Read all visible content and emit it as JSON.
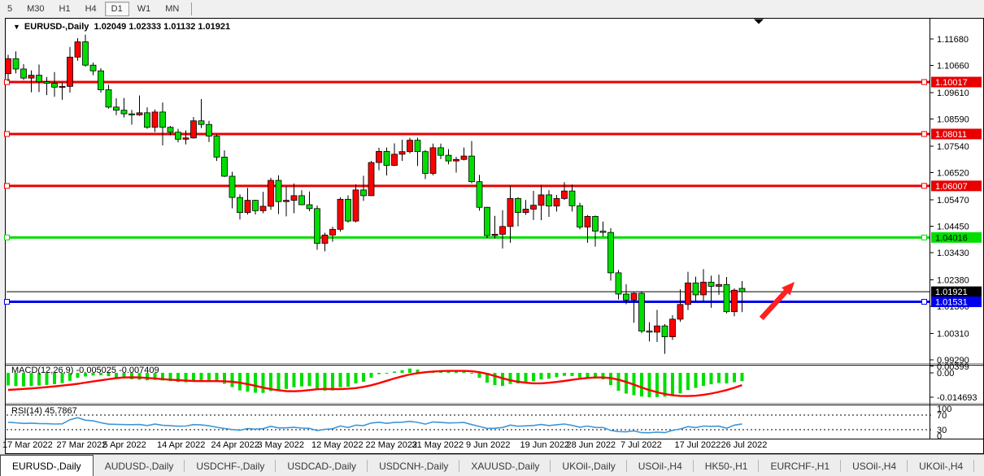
{
  "toolbar": {
    "buttons": [
      {
        "label": "5",
        "active": false
      },
      {
        "label": "M30",
        "active": false
      },
      {
        "label": "H1",
        "active": false
      },
      {
        "label": "H4",
        "active": false
      },
      {
        "label": "D1",
        "active": true
      },
      {
        "label": "W1",
        "active": false
      },
      {
        "label": "MN",
        "active": false
      }
    ]
  },
  "chart": {
    "title": {
      "icon": "▼",
      "symbol": "EURUSD-,Daily",
      "ohlc": "1.02049 1.02333 1.01132 1.01921"
    }
  },
  "chart_data": {
    "type": "candlestick",
    "symbol": "EURUSD-,Daily",
    "last_bar": {
      "open": 1.02049,
      "high": 1.02333,
      "low": 1.01132,
      "close": 1.01921
    },
    "colors": {
      "bull": "#FF0000",
      "bear": "#00DE00",
      "wick": "#000000",
      "rsi_line": "#3E96D8",
      "macd_hist": "#00DE00",
      "macd_signal": "#FF0000",
      "arrow": "#FF2020"
    },
    "price_axis": [
      "1.11680",
      "1.10660",
      "1.09610",
      "1.08590",
      "1.07540",
      "1.06520",
      "1.05470",
      "1.04450",
      "1.03430",
      "1.02380",
      "1.01360",
      "1.00310",
      "0.99290"
    ],
    "levels": [
      {
        "price": 1.10017,
        "label": "1.10017",
        "color": "#E80000",
        "text": "#FFFFFF",
        "width": 3
      },
      {
        "price": 1.08011,
        "label": "1.08011",
        "color": "#E80000",
        "text": "#FFFFFF",
        "width": 3
      },
      {
        "price": 1.06007,
        "label": "1.06007",
        "color": "#E80000",
        "text": "#FFFFFF",
        "width": 3
      },
      {
        "price": 1.04016,
        "label": "1.04016",
        "color": "#00DE00",
        "text": "#000000",
        "width": 3
      },
      {
        "price": 1.01921,
        "label": "1.01921",
        "color": "#000000",
        "text": "#FFFFFF",
        "width": 1
      },
      {
        "price": 1.01531,
        "label": "1.01531",
        "color": "#0000EE",
        "text": "#FFFFFF",
        "width": 3
      }
    ],
    "candles": [
      [
        1.1034,
        1.1107,
        1.1005,
        1.1092
      ],
      [
        1.1092,
        1.112,
        1.1035,
        1.1052
      ],
      [
        1.1052,
        1.1071,
        1.101,
        1.1017
      ],
      [
        1.1017,
        1.1047,
        1.0962,
        1.1028
      ],
      [
        1.1028,
        1.1069,
        1.0963,
        1.1003
      ],
      [
        1.1003,
        1.1021,
        1.0951,
        1.0997
      ],
      [
        1.0997,
        1.104,
        1.0945,
        1.0982
      ],
      [
        1.0982,
        1.1,
        1.0933,
        1.0985
      ],
      [
        1.0985,
        1.1137,
        1.0961,
        1.1098
      ],
      [
        1.1098,
        1.1171,
        1.1084,
        1.1157
      ],
      [
        1.1157,
        1.1185,
        1.1061,
        1.1067
      ],
      [
        1.1067,
        1.1077,
        1.1028,
        1.1045
      ],
      [
        1.1045,
        1.1055,
        1.0961,
        1.0972
      ],
      [
        1.0972,
        1.0991,
        1.0899,
        1.0905
      ],
      [
        1.0905,
        1.0939,
        1.0874,
        1.0893
      ],
      [
        1.0893,
        1.094,
        1.0865,
        1.0879
      ],
      [
        1.0879,
        1.0894,
        1.0837,
        1.0875
      ],
      [
        1.0875,
        1.095,
        1.0871,
        1.0883
      ],
      [
        1.0883,
        1.0904,
        1.0821,
        1.0827
      ],
      [
        1.0827,
        1.0896,
        1.0809,
        1.0886
      ],
      [
        1.0886,
        1.0923,
        1.0757,
        1.0827
      ],
      [
        1.0827,
        1.0832,
        1.0796,
        1.0808
      ],
      [
        1.0808,
        1.0821,
        1.0769,
        1.0781
      ],
      [
        1.0781,
        1.0815,
        1.0761,
        1.0786
      ],
      [
        1.0786,
        1.0867,
        1.0783,
        1.0852
      ],
      [
        1.0852,
        1.0936,
        1.0824,
        1.0838
      ],
      [
        1.0838,
        1.0852,
        1.077,
        1.0793
      ],
      [
        1.0793,
        1.08,
        1.0697,
        1.0712
      ],
      [
        1.0712,
        1.0738,
        1.0635,
        1.0638
      ],
      [
        1.0638,
        1.0655,
        1.0514,
        1.0556
      ],
      [
        1.0556,
        1.0568,
        1.0471,
        1.0498
      ],
      [
        1.0498,
        1.0593,
        1.049,
        1.0545
      ],
      [
        1.0545,
        1.0547,
        1.049,
        1.0505
      ],
      [
        1.0505,
        1.0578,
        1.0495,
        1.0522
      ],
      [
        1.0522,
        1.0632,
        1.0508,
        1.0622
      ],
      [
        1.0622,
        1.0642,
        1.0492,
        1.054
      ],
      [
        1.054,
        1.0599,
        1.0483,
        1.0545
      ],
      [
        1.0545,
        1.061,
        1.0495,
        1.0563
      ],
      [
        1.0563,
        1.0584,
        1.0526,
        1.0528
      ],
      [
        1.0528,
        1.0579,
        1.0503,
        1.0513
      ],
      [
        1.0513,
        1.0525,
        1.0354,
        1.0379
      ],
      [
        1.0379,
        1.042,
        1.0348,
        1.0411
      ],
      [
        1.0411,
        1.0443,
        1.0385,
        1.0433
      ],
      [
        1.0433,
        1.0557,
        1.0424,
        1.0549
      ],
      [
        1.0549,
        1.0564,
        1.0459,
        1.0465
      ],
      [
        1.0465,
        1.0607,
        1.046,
        1.0585
      ],
      [
        1.0585,
        1.064,
        1.0543,
        1.0563
      ],
      [
        1.0563,
        1.0697,
        1.0562,
        1.0691
      ],
      [
        1.0691,
        1.0748,
        1.0661,
        1.0734
      ],
      [
        1.0734,
        1.0749,
        1.0641,
        1.068
      ],
      [
        1.068,
        1.0765,
        1.0677,
        1.0723
      ],
      [
        1.0723,
        1.0779,
        1.0697,
        1.0733
      ],
      [
        1.0733,
        1.0786,
        1.0726,
        1.0777
      ],
      [
        1.0777,
        1.0787,
        1.0678,
        1.0733
      ],
      [
        1.0733,
        1.0739,
        1.0627,
        1.0649
      ],
      [
        1.0649,
        1.0764,
        1.0642,
        1.0748
      ],
      [
        1.0748,
        1.0764,
        1.0704,
        1.0719
      ],
      [
        1.0719,
        1.0743,
        1.0684,
        1.0697
      ],
      [
        1.0697,
        1.0713,
        1.0652,
        1.0703
      ],
      [
        1.0703,
        1.0749,
        1.0699,
        1.0716
      ],
      [
        1.0716,
        1.0774,
        1.0611,
        1.0617
      ],
      [
        1.0617,
        1.0643,
        1.0505,
        1.0518
      ],
      [
        1.0518,
        1.052,
        1.0399,
        1.0409
      ],
      [
        1.0409,
        1.0485,
        1.0397,
        1.0414
      ],
      [
        1.0414,
        1.0507,
        1.0359,
        1.0444
      ],
      [
        1.0444,
        1.0601,
        1.0381,
        1.0552
      ],
      [
        1.0552,
        1.0557,
        1.0444,
        1.0498
      ],
      [
        1.0498,
        1.0546,
        1.0489,
        1.0511
      ],
      [
        1.0511,
        1.0582,
        1.0469,
        1.0526
      ],
      [
        1.0526,
        1.0605,
        1.0468,
        1.0566
      ],
      [
        1.0566,
        1.0584,
        1.0481,
        1.0523
      ],
      [
        1.0523,
        1.0566,
        1.0502,
        1.0552
      ],
      [
        1.0552,
        1.0615,
        1.0547,
        1.0581
      ],
      [
        1.0581,
        1.0606,
        1.0502,
        1.0524
      ],
      [
        1.0524,
        1.0536,
        1.0433,
        1.0442
      ],
      [
        1.0442,
        1.0488,
        1.0381,
        1.0483
      ],
      [
        1.0483,
        1.0486,
        1.0366,
        1.0426
      ],
      [
        1.0426,
        1.0463,
        1.0405,
        1.0421
      ],
      [
        1.0421,
        1.0437,
        1.0235,
        1.0265
      ],
      [
        1.0265,
        1.0276,
        1.0162,
        1.0183
      ],
      [
        1.0183,
        1.0221,
        1.0144,
        1.016
      ],
      [
        1.016,
        1.019,
        1.0072,
        1.0186
      ],
      [
        1.0186,
        1.0193,
        1.0032,
        1.004
      ],
      [
        1.004,
        1.0074,
        1.0,
        1.0036
      ],
      [
        1.0036,
        1.0122,
        0.9998,
        1.006
      ],
      [
        1.006,
        1.0067,
        0.9952,
        1.0018
      ],
      [
        1.0018,
        1.0101,
        1.0006,
        1.0086
      ],
      [
        1.0086,
        1.0201,
        1.0076,
        1.0143
      ],
      [
        1.0143,
        1.0269,
        1.0121,
        1.0226
      ],
      [
        1.0226,
        1.025,
        1.0155,
        1.018
      ],
      [
        1.018,
        1.0279,
        1.0153,
        1.0229
      ],
      [
        1.0229,
        1.0254,
        1.013,
        1.0213
      ],
      [
        1.0213,
        1.0258,
        1.018,
        1.022
      ],
      [
        1.022,
        1.0249,
        1.0108,
        1.0115
      ],
      [
        1.0115,
        1.0205,
        1.0097,
        1.0198
      ],
      [
        1.02049,
        1.02333,
        1.01132,
        1.01921
      ]
    ],
    "date_labels": [
      {
        "index": 0,
        "label": "17 Mar 2022"
      },
      {
        "index": 7,
        "label": "27 Mar 2022"
      },
      {
        "index": 13,
        "label": "5 Apr 2022"
      },
      {
        "index": 20,
        "label": "14 Apr 2022"
      },
      {
        "index": 27,
        "label": "24 Apr 2022"
      },
      {
        "index": 33,
        "label": "3 May 2022"
      },
      {
        "index": 40,
        "label": "12 May 2022"
      },
      {
        "index": 47,
        "label": "22 May 2022"
      },
      {
        "index": 53,
        "label": "31 May 2022"
      },
      {
        "index": 60,
        "label": "9 Jun 2022"
      },
      {
        "index": 67,
        "label": "19 Jun 2022"
      },
      {
        "index": 73,
        "label": "28 Jun 2022"
      },
      {
        "index": 80,
        "label": "7 Jul 2022"
      },
      {
        "index": 87,
        "label": "17 Jul 2022"
      },
      {
        "index": 93,
        "label": "26 Jul 2022"
      }
    ],
    "annotations": [
      {
        "type": "arrow-up-right",
        "from_index": 97.5,
        "from_price": 1.0089,
        "to_index": 101.8,
        "to_price": 1.023,
        "color": "#FF2020"
      }
    ],
    "indicators": {
      "macd": {
        "label": "MACD(12,26,9)",
        "values_label": "-0.005025 -0.007409",
        "current": -0.005025,
        "signal_current": -0.007409,
        "axis_labels": [
          "0.00399",
          "0.00",
          "-0.014693"
        ],
        "hist": [
          -0.0076,
          -0.008,
          -0.0082,
          -0.008,
          -0.0077,
          -0.0073,
          -0.0068,
          -0.0062,
          -0.0048,
          -0.003,
          -0.0022,
          -0.0016,
          -0.0015,
          -0.002,
          -0.0027,
          -0.0034,
          -0.0039,
          -0.0042,
          -0.0045,
          -0.0043,
          -0.0046,
          -0.005,
          -0.0055,
          -0.0057,
          -0.0051,
          -0.0046,
          -0.0046,
          -0.0053,
          -0.0066,
          -0.0086,
          -0.0106,
          -0.0114,
          -0.012,
          -0.0121,
          -0.0109,
          -0.0104,
          -0.0097,
          -0.0087,
          -0.0082,
          -0.008,
          -0.0101,
          -0.0107,
          -0.0106,
          -0.0087,
          -0.0084,
          -0.0064,
          -0.0054,
          -0.0029,
          -0.0008,
          -0.0001,
          0.0008,
          0.0016,
          0.0026,
          0.002,
          0.0006,
          0.0011,
          0.0013,
          0.0011,
          0.0011,
          0.0013,
          -0.0004,
          -0.003,
          -0.0059,
          -0.0074,
          -0.0079,
          -0.0067,
          -0.0064,
          -0.0059,
          -0.0051,
          -0.004,
          -0.0035,
          -0.0027,
          -0.0018,
          -0.0019,
          -0.0029,
          -0.003,
          -0.0035,
          -0.004,
          -0.0074,
          -0.0108,
          -0.0125,
          -0.0135,
          -0.0143,
          -0.0147,
          -0.0146,
          -0.0144,
          -0.0137,
          -0.0124,
          -0.0104,
          -0.0091,
          -0.0079,
          -0.0069,
          -0.0061,
          -0.0064,
          -0.0057,
          -0.005025
        ],
        "signal": [
          -0.0103,
          -0.01,
          -0.0097,
          -0.0094,
          -0.009,
          -0.0086,
          -0.0082,
          -0.0077,
          -0.0072,
          -0.0066,
          -0.0059,
          -0.0052,
          -0.0045,
          -0.0038,
          -0.0032,
          -0.0028,
          -0.0027,
          -0.0028,
          -0.0031,
          -0.0034,
          -0.0038,
          -0.0041,
          -0.0044,
          -0.0047,
          -0.0049,
          -0.005,
          -0.005,
          -0.005,
          -0.0051,
          -0.0054,
          -0.006,
          -0.0068,
          -0.0078,
          -0.0089,
          -0.0098,
          -0.0105,
          -0.011,
          -0.0111,
          -0.0109,
          -0.0104,
          -0.0099,
          -0.0097,
          -0.0098,
          -0.0098,
          -0.0096,
          -0.0092,
          -0.0085,
          -0.0075,
          -0.0062,
          -0.0048,
          -0.0034,
          -0.0021,
          -0.001,
          -0.0002,
          0.0004,
          0.0008,
          0.0011,
          0.0012,
          0.0012,
          0.0012,
          0.001,
          0.0004,
          -0.0006,
          -0.0019,
          -0.0033,
          -0.0045,
          -0.0054,
          -0.006,
          -0.0063,
          -0.0063,
          -0.006,
          -0.0055,
          -0.0049,
          -0.0042,
          -0.0036,
          -0.0031,
          -0.0028,
          -0.0028,
          -0.0032,
          -0.0041,
          -0.0055,
          -0.0071,
          -0.0088,
          -0.0104,
          -0.0117,
          -0.0128,
          -0.0135,
          -0.0139,
          -0.014,
          -0.0138,
          -0.0133,
          -0.0125,
          -0.0115,
          -0.0104,
          -0.009,
          -0.0074
        ]
      },
      "rsi": {
        "label": "RSI(14)",
        "value_label": "45.7867",
        "current": 45.7867,
        "axis_labels": [
          "100",
          "70",
          "30",
          "0"
        ],
        "level_values": [
          100,
          70,
          30,
          0
        ],
        "values": [
          50.5,
          48.9,
          47.2,
          48.1,
          46.8,
          46.4,
          45.6,
          45.9,
          57.4,
          62.8,
          55.9,
          54.2,
          49.0,
          45.2,
          44.6,
          43.9,
          43.7,
          44.2,
          41.3,
          45.3,
          41.9,
          40.9,
          39.5,
          39.9,
          43.9,
          43.1,
          40.6,
          36.6,
          33.4,
          30.4,
          28.5,
          33.2,
          31.5,
          32.8,
          39.3,
          34.8,
          35.2,
          36.5,
          34.5,
          33.7,
          27.6,
          31.1,
          32.6,
          40.3,
          35.9,
          42.5,
          41.3,
          48.2,
          50.4,
          47.3,
          49.8,
          50.4,
          52.9,
          50.1,
          45.3,
          51.3,
          49.7,
          48.5,
          48.9,
          49.7,
          44.0,
          38.8,
          33.5,
          34.0,
          36.0,
          42.7,
          39.5,
          40.5,
          41.6,
          44.3,
          41.4,
          43.5,
          45.5,
          41.7,
          36.9,
          40.1,
          36.3,
          36.0,
          27.9,
          24.9,
          24.2,
          26.6,
          21.9,
          21.8,
          23.3,
          22.1,
          28.0,
          32.0,
          38.5,
          35.8,
          40.0,
          39.1,
          39.7,
          33.9,
          42.5,
          45.79
        ]
      }
    }
  },
  "tabbar": {
    "tabs": [
      {
        "label": "EURUSD-,Daily",
        "active": true
      },
      {
        "label": "AUDUSD-,Daily",
        "active": false
      },
      {
        "label": "USDCHF-,Daily",
        "active": false
      },
      {
        "label": "USDCAD-,Daily",
        "active": false
      },
      {
        "label": "USDCNH-,Daily",
        "active": false
      },
      {
        "label": "XAUUSD-,Daily",
        "active": false
      },
      {
        "label": "UKOil-,Daily",
        "active": false
      },
      {
        "label": "USOil-,H4",
        "active": false
      },
      {
        "label": "HK50-,H1",
        "active": false
      },
      {
        "label": "EURCHF-,H1",
        "active": false
      },
      {
        "label": "USOil-,H4",
        "active": false
      },
      {
        "label": "UKOil-,H4",
        "active": false
      }
    ],
    "scroll_left": "◄",
    "scroll_right": "►"
  }
}
